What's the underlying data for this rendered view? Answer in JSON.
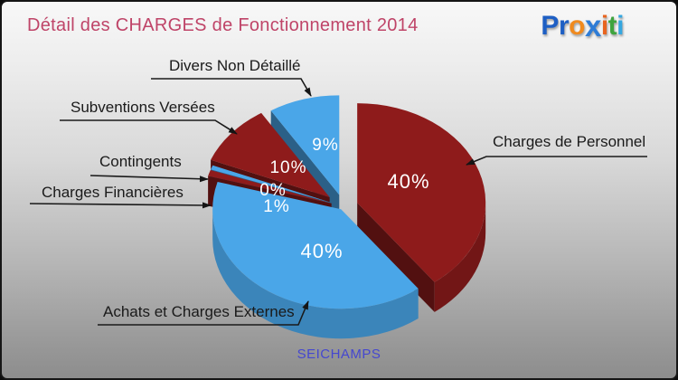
{
  "header": {
    "title": "Détail des CHARGES de Fonctionnement 2014"
  },
  "logo": {
    "text": "Proxiti",
    "letters": [
      {
        "ch": "P",
        "color": "#1e5fc4"
      },
      {
        "ch": "r",
        "color": "#1e5fc4"
      },
      {
        "ch": "o",
        "color": "#f08a1e"
      },
      {
        "ch": "x",
        "color": "#2e7cd6"
      },
      {
        "ch": "i",
        "color": "#e8641f"
      },
      {
        "ch": "t",
        "color": "#3fa43f"
      },
      {
        "ch": "i",
        "color": "#35a7e0"
      }
    ]
  },
  "chart_data": {
    "type": "pie",
    "style": "3d-exploded",
    "title": "Détail des CHARGES de Fonctionnement 2014",
    "unit": "percent",
    "legend_position": "callout-labels",
    "palette": {
      "dark_red": "#8e1b1b",
      "blue": "#4aa6e8"
    },
    "slices": [
      {
        "label": "Charges de Personnel",
        "value": 40,
        "display": "40%",
        "color": "#8e1b1b"
      },
      {
        "label": "Achats et Charges Externes",
        "value": 40,
        "display": "40%",
        "color": "#4aa6e8"
      },
      {
        "label": "Charges Financières",
        "value": 1,
        "display": "1%",
        "color": "#8e1b1b"
      },
      {
        "label": "Contingents",
        "value": 0,
        "display": "0%",
        "color": "#4aa6e8"
      },
      {
        "label": "Subventions Versées",
        "value": 10,
        "display": "10%",
        "color": "#8e1b1b"
      },
      {
        "label": "Divers Non Détaillé",
        "value": 9,
        "display": "9%",
        "color": "#4aa6e8"
      }
    ],
    "footer": "SEICHAMPS"
  }
}
